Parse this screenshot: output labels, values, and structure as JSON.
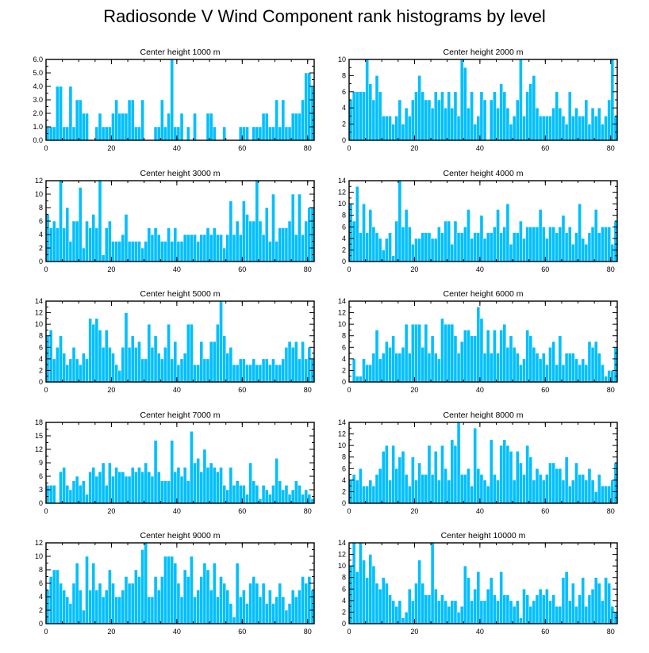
{
  "title": "Radiosonde V Wind Component rank histograms by level",
  "chart_data": [
    {
      "type": "bar",
      "title": "Center height 1000 m",
      "xlim": [
        0,
        82
      ],
      "ylim": [
        0,
        6
      ],
      "yticks": [
        0,
        1,
        2,
        3,
        4,
        5,
        6
      ],
      "ytick_labels": [
        "0.0",
        "1.0",
        "2.0",
        "3.0",
        "4.0",
        "5.0",
        "6.0"
      ],
      "xticks": [
        0,
        20,
        40,
        60,
        80
      ],
      "values": [
        1,
        1,
        1,
        4,
        4,
        1,
        1,
        4,
        1,
        3,
        3,
        2,
        2,
        0,
        0,
        1,
        2,
        1,
        1,
        1,
        2,
        3,
        2,
        2,
        2,
        3,
        3,
        1,
        1,
        3,
        0,
        0,
        0,
        1,
        1,
        3,
        1,
        2,
        6,
        1,
        1,
        2,
        0,
        1,
        0,
        2,
        0,
        0,
        0,
        2,
        2,
        1,
        0,
        0,
        1,
        0,
        0,
        0,
        0,
        1,
        1,
        1,
        0,
        1,
        1,
        1,
        2,
        2,
        1,
        1,
        3,
        1,
        3,
        1,
        1,
        2,
        2,
        2,
        3,
        5,
        5,
        4
      ]
    },
    {
      "type": "bar",
      "title": "Center height 2000 m",
      "xlim": [
        0,
        82
      ],
      "ylim": [
        0,
        10
      ],
      "yticks": [
        0,
        2,
        4,
        6,
        8,
        10
      ],
      "ytick_labels": [
        "0",
        "2",
        "4",
        "6",
        "8",
        "10"
      ],
      "xticks": [
        0,
        20,
        40,
        60,
        80
      ],
      "values": [
        5,
        6,
        6,
        6,
        6,
        10,
        7,
        5,
        8,
        6,
        3,
        3,
        3,
        2,
        3,
        5,
        2,
        4,
        3,
        5,
        6,
        8,
        6,
        5,
        5,
        4,
        6,
        5,
        6,
        4,
        6,
        4,
        6,
        3,
        10,
        9,
        4,
        6,
        2,
        3,
        6,
        5,
        0,
        5,
        6,
        4,
        7,
        6,
        4,
        2,
        3,
        5,
        10,
        3,
        6,
        7,
        8,
        4,
        3,
        3,
        3,
        3,
        4,
        6,
        4,
        3,
        2,
        6,
        3,
        4,
        3,
        3,
        5,
        2,
        4,
        3,
        4,
        2,
        3,
        5,
        10,
        3
      ]
    },
    {
      "type": "bar",
      "title": "Center height 3000 m",
      "xlim": [
        0,
        82
      ],
      "ylim": [
        0,
        12
      ],
      "yticks": [
        0,
        2,
        4,
        6,
        8,
        10,
        12
      ],
      "ytick_labels": [
        "0",
        "2",
        "4",
        "6",
        "8",
        "10",
        "12"
      ],
      "xticks": [
        0,
        20,
        40,
        60,
        80
      ],
      "values": [
        7,
        5,
        6,
        5,
        12,
        5,
        8,
        3,
        6,
        6,
        11,
        2,
        6,
        5,
        7,
        5,
        12,
        1,
        5,
        6,
        3,
        3,
        3,
        4,
        7,
        3,
        3,
        3,
        3,
        2,
        3,
        5,
        4,
        5,
        4,
        3,
        3,
        5,
        3,
        5,
        3,
        3,
        4,
        4,
        4,
        4,
        3,
        4,
        4,
        5,
        4,
        5,
        4,
        4,
        2,
        4,
        9,
        4,
        6,
        4,
        9,
        7,
        6,
        6,
        12,
        6,
        4,
        8,
        3,
        10,
        3,
        5,
        5,
        5,
        6,
        10,
        4,
        10,
        4,
        6,
        8,
        8
      ]
    },
    {
      "type": "bar",
      "title": "Center height 4000 m",
      "xlim": [
        0,
        82
      ],
      "ylim": [
        0,
        14
      ],
      "yticks": [
        0,
        2,
        4,
        6,
        8,
        10,
        12,
        14
      ],
      "ytick_labels": [
        "0",
        "2",
        "4",
        "6",
        "8",
        "10",
        "12",
        "14"
      ],
      "xticks": [
        0,
        20,
        40,
        60,
        80
      ],
      "values": [
        10,
        7,
        13,
        5,
        10,
        5,
        9,
        6,
        5,
        4,
        2,
        4,
        5,
        1,
        7,
        14,
        6,
        9,
        6,
        3,
        4,
        4,
        5,
        5,
        5,
        4,
        4,
        6,
        5,
        7,
        7,
        3,
        7,
        5,
        5,
        6,
        9,
        4,
        5,
        5,
        8,
        4,
        5,
        5,
        6,
        9,
        5,
        6,
        10,
        3,
        5,
        5,
        7,
        4,
        6,
        6,
        6,
        6,
        9,
        6,
        4,
        6,
        6,
        5,
        6,
        8,
        5,
        6,
        3,
        5,
        10,
        4,
        3,
        5,
        6,
        9,
        5,
        6,
        6,
        6,
        3,
        7
      ]
    },
    {
      "type": "bar",
      "title": "Center height 5000 m",
      "xlim": [
        0,
        82
      ],
      "ylim": [
        0,
        14
      ],
      "yticks": [
        0,
        2,
        4,
        6,
        8,
        10,
        12,
        14
      ],
      "ytick_labels": [
        "0",
        "2",
        "4",
        "6",
        "8",
        "10",
        "12",
        "14"
      ],
      "xticks": [
        0,
        20,
        40,
        60,
        80
      ],
      "values": [
        8,
        9,
        4,
        6,
        8,
        5,
        3,
        4,
        6,
        4,
        3,
        5,
        4,
        11,
        10,
        11,
        9,
        6,
        9,
        6,
        5,
        3,
        2,
        6,
        12,
        6,
        8,
        6,
        7,
        4,
        4,
        10,
        6,
        8,
        5,
        4,
        6,
        10,
        4,
        7,
        3,
        4,
        5,
        10,
        10,
        3,
        3,
        7,
        4,
        4,
        7,
        7,
        10,
        14,
        8,
        5,
        6,
        3,
        3,
        4,
        4,
        3,
        3,
        4,
        3,
        3,
        4,
        4,
        3,
        4,
        3,
        3,
        4,
        6,
        7,
        6,
        7,
        4,
        7,
        4,
        6,
        4
      ]
    },
    {
      "type": "bar",
      "title": "Center height 6000 m",
      "xlim": [
        0,
        82
      ],
      "ylim": [
        0,
        14
      ],
      "yticks": [
        0,
        2,
        4,
        6,
        8,
        10,
        12,
        14
      ],
      "ytick_labels": [
        "0",
        "2",
        "4",
        "6",
        "8",
        "10",
        "12",
        "14"
      ],
      "xticks": [
        0,
        20,
        40,
        60,
        80
      ],
      "values": [
        0,
        4,
        1,
        1,
        4,
        3,
        3,
        5,
        9,
        4,
        5,
        7,
        6,
        8,
        5,
        5,
        6,
        10,
        5,
        10,
        10,
        10,
        6,
        10,
        5,
        8,
        5,
        4,
        11,
        10,
        10,
        10,
        8,
        5,
        7,
        9,
        9,
        8,
        8,
        13,
        11,
        5,
        9,
        5,
        9,
        5,
        9,
        10,
        6,
        8,
        6,
        5,
        3,
        4,
        9,
        8,
        6,
        5,
        4,
        5,
        3,
        6,
        7,
        3,
        8,
        3,
        5,
        5,
        5,
        4,
        3,
        4,
        3,
        7,
        6,
        7,
        5,
        3,
        1,
        2,
        2,
        6
      ]
    },
    {
      "type": "bar",
      "title": "Center height 7000 m",
      "xlim": [
        0,
        82
      ],
      "ylim": [
        0,
        18
      ],
      "yticks": [
        0,
        3,
        6,
        9,
        12,
        15,
        18
      ],
      "ytick_labels": [
        "0",
        "3",
        "6",
        "9",
        "12",
        "15",
        "18"
      ],
      "xticks": [
        0,
        20,
        40,
        60,
        80
      ],
      "values": [
        4,
        4,
        4,
        0,
        7,
        8,
        4,
        3,
        5,
        6,
        4,
        5,
        2,
        7,
        8,
        6,
        7,
        9,
        4,
        9,
        6,
        8,
        7,
        7,
        6,
        6,
        8,
        7,
        8,
        7,
        9,
        7,
        6,
        14,
        7,
        5,
        5,
        5,
        14,
        7,
        8,
        6,
        8,
        5,
        16,
        9,
        10,
        7,
        12,
        8,
        9,
        8,
        7,
        8,
        4,
        3,
        8,
        4,
        5,
        4,
        4,
        2,
        9,
        5,
        4,
        1,
        4,
        3,
        2,
        4,
        10,
        5,
        3,
        4,
        2,
        3,
        5,
        4,
        2,
        3,
        2,
        1
      ]
    },
    {
      "type": "bar",
      "title": "Center height 8000 m",
      "xlim": [
        0,
        82
      ],
      "ylim": [
        0,
        14
      ],
      "yticks": [
        0,
        2,
        4,
        6,
        8,
        10,
        12,
        14
      ],
      "ytick_labels": [
        "0",
        "2",
        "4",
        "6",
        "8",
        "10",
        "12",
        "14"
      ],
      "xticks": [
        0,
        20,
        40,
        60,
        80
      ],
      "values": [
        4,
        5,
        4,
        6,
        3,
        3,
        4,
        3,
        5,
        6,
        9,
        10,
        4,
        10,
        6,
        8,
        9,
        5,
        3,
        8,
        4,
        7,
        5,
        5,
        10,
        5,
        9,
        4,
        10,
        6,
        4,
        11,
        10,
        14,
        5,
        5,
        6,
        3,
        13,
        6,
        5,
        4,
        3,
        11,
        5,
        4,
        10,
        11,
        10,
        9,
        4,
        9,
        7,
        5,
        10,
        8,
        4,
        6,
        5,
        4,
        5,
        7,
        7,
        6,
        6,
        4,
        8,
        3,
        4,
        7,
        5,
        5,
        4,
        6,
        4,
        2,
        5,
        3,
        3,
        3,
        4,
        7
      ]
    },
    {
      "type": "bar",
      "title": "Center height 9000 m",
      "xlim": [
        0,
        82
      ],
      "ylim": [
        0,
        12
      ],
      "yticks": [
        0,
        2,
        4,
        6,
        8,
        10,
        12
      ],
      "ytick_labels": [
        "0",
        "2",
        "4",
        "6",
        "8",
        "10",
        "12"
      ],
      "xticks": [
        0,
        20,
        40,
        60,
        80
      ],
      "values": [
        5,
        7,
        8,
        8,
        6,
        5,
        4,
        3,
        6,
        9,
        5,
        2,
        10,
        5,
        9,
        5,
        6,
        4,
        5,
        8,
        6,
        4,
        4,
        5,
        7,
        6,
        6,
        8,
        7,
        11,
        12,
        4,
        4,
        7,
        5,
        7,
        10,
        10,
        10,
        9,
        6,
        4,
        8,
        7,
        10,
        4,
        5,
        7,
        9,
        8,
        5,
        9,
        4,
        7,
        6,
        5,
        3,
        1,
        9,
        4,
        5,
        3,
        6,
        7,
        6,
        4,
        6,
        3,
        5,
        3,
        4,
        6,
        4,
        2,
        3,
        5,
        4,
        5,
        7,
        6,
        7,
        5
      ]
    },
    {
      "type": "bar",
      "title": "Center height 10000 m",
      "xlim": [
        0,
        82
      ],
      "ylim": [
        0,
        14
      ],
      "yticks": [
        0,
        2,
        4,
        6,
        8,
        10,
        12,
        14
      ],
      "ytick_labels": [
        "0",
        "2",
        "4",
        "6",
        "8",
        "10",
        "12",
        "14"
      ],
      "xticks": [
        0,
        20,
        40,
        60,
        80
      ],
      "values": [
        10,
        14,
        9,
        14,
        11,
        8,
        12,
        10,
        7,
        6,
        8,
        7,
        5,
        4,
        3,
        4,
        1,
        2,
        6,
        4,
        7,
        11,
        7,
        5,
        5,
        14,
        6,
        4,
        5,
        4,
        3,
        4,
        4,
        2,
        3,
        10,
        8,
        4,
        6,
        9,
        4,
        4,
        6,
        8,
        5,
        4,
        9,
        5,
        5,
        4,
        3,
        4,
        1,
        6,
        5,
        3,
        4,
        5,
        6,
        5,
        6,
        4,
        5,
        3,
        3,
        8,
        9,
        4,
        7,
        3,
        5,
        8,
        3,
        5,
        6,
        8,
        7,
        4,
        8,
        7,
        3,
        2
      ]
    }
  ]
}
